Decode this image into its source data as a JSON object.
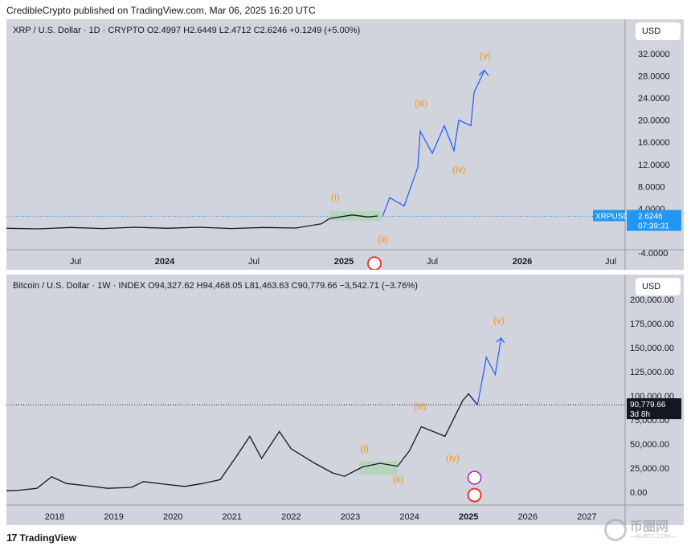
{
  "publisher_line": "CredibleCrypto published on TradingView.com, Mar 06, 2025 16:20 UTC",
  "footer": {
    "logo_text": "TradingView",
    "watermark": "币圈网",
    "watermark_sub": "—ALIBTC.COM—"
  },
  "colors": {
    "panel_bg": "#d1d4dc",
    "projection": "#2962ff",
    "wave_label": "#f7931a",
    "box": "#a5d6a7",
    "price_tag_xrp": "#2196f3",
    "price_tag_btc": "#131722"
  },
  "chart_data": [
    {
      "type": "line",
      "header": "XRP / U.S. Dollar · 1D · CRYPTO  O2.4997  H2.6449  L2.4712  C2.6246  +0.1249 (+5.00%)",
      "currency": "USD",
      "y_ticks": [
        "32.0000",
        "28.0000",
        "24.0000",
        "20.0000",
        "16.0000",
        "12.0000",
        "8.0000",
        "4.0000",
        "-4.0000"
      ],
      "ylim": [
        -4,
        32
      ],
      "x_ticks": [
        "Jul",
        "2024",
        "Jul",
        "2025",
        "Jul",
        "2026",
        "Jul"
      ],
      "price_tag": {
        "symbol": "XRPUSD",
        "price": "2.6246",
        "countdown": "07:39:31"
      },
      "series": [
        {
          "x": [
            "2023-03",
            "2023-05",
            "2023-07",
            "2023-09",
            "2023-11",
            "2024-01",
            "2024-03",
            "2024-05",
            "2024-07",
            "2024-09",
            "2024-11",
            "2024-12",
            "2025-01",
            "2025-02",
            "2025-03"
          ],
          "values": [
            0.4,
            0.45,
            0.55,
            0.5,
            0.6,
            0.55,
            0.6,
            0.5,
            0.55,
            0.6,
            1.2,
            2.3,
            2.8,
            2.6,
            2.62
          ]
        }
      ],
      "projection": {
        "x": [
          "2025-03",
          "2025-04",
          "2025-05",
          "2025-06",
          "2025-06",
          "2025-07",
          "2025-08",
          "2025-08",
          "2025-09",
          "2025-10",
          "2025-10",
          "2025-11"
        ],
        "values": [
          2.6,
          6.0,
          4.5,
          11.5,
          18.0,
          14.0,
          19.0,
          14.5,
          20.0,
          19.0,
          25.0,
          29.0
        ]
      },
      "wave_labels": [
        {
          "label": "(i)",
          "x": "2024-12",
          "y": 5.5
        },
        {
          "label": "(ii)",
          "x": "2025-02",
          "y": -1.5
        },
        {
          "label": "(iii)",
          "x": "2025-05",
          "y": 22.5
        },
        {
          "label": "(iv)",
          "x": "2025-08",
          "y": 10.5
        },
        {
          "label": "(v)",
          "x": "2025-11",
          "y": 31
        }
      ]
    },
    {
      "type": "line",
      "header": "Bitcoin / U.S. Dollar · 1W · INDEX  O94,327.62  H94,468.05  L81,463.63  C90,779.66  −3,542.71 (−3.76%)",
      "currency": "USD",
      "y_ticks": [
        "200,000.00",
        "175,000.00",
        "150,000.00",
        "125,000.00",
        "100,000.00",
        "75,000.00",
        "50,000.00",
        "25,000.00",
        "0.00"
      ],
      "ylim": [
        -10000,
        210000
      ],
      "x_ticks": [
        "2018",
        "2019",
        "2020",
        "2021",
        "2022",
        "2023",
        "2024",
        "2025",
        "2026",
        "2027"
      ],
      "price_tag": {
        "price": "90,779.66",
        "countdown": "3d 8h"
      },
      "series": [
        {
          "x": [
            2017.4,
            2017.7,
            2017.95,
            2018.2,
            2018.5,
            2018.9,
            2019.3,
            2019.5,
            2019.9,
            2020.2,
            2020.5,
            2020.8,
            2021.05,
            2021.3,
            2021.5,
            2021.8,
            2022.0,
            2022.4,
            2022.7,
            2022.9,
            2023.2,
            2023.5,
            2023.8,
            2024.0,
            2024.2,
            2024.6,
            2024.9,
            2025.0,
            2025.15
          ],
          "values": [
            2000,
            4000,
            16000,
            9000,
            7000,
            4000,
            5000,
            11000,
            8000,
            6000,
            9000,
            13000,
            35000,
            58000,
            35000,
            63000,
            45000,
            30000,
            20000,
            16500,
            26000,
            30000,
            27000,
            43000,
            68000,
            58000,
            95000,
            102000,
            90779
          ]
        }
      ],
      "projection": {
        "x": [
          2025.15,
          2025.3,
          2025.45,
          2025.55
        ],
        "values": [
          90000,
          140000,
          122000,
          160000
        ]
      },
      "wave_labels": [
        {
          "label": "(i)",
          "x": 2023.25,
          "y": 42000
        },
        {
          "label": "(ii)",
          "x": 2023.8,
          "y": 10000
        },
        {
          "label": "(iii)",
          "x": 2024.15,
          "y": 86000
        },
        {
          "label": "(iv)",
          "x": 2024.7,
          "y": 32000
        },
        {
          "label": "(v)",
          "x": 2025.5,
          "y": 175000
        }
      ]
    }
  ]
}
